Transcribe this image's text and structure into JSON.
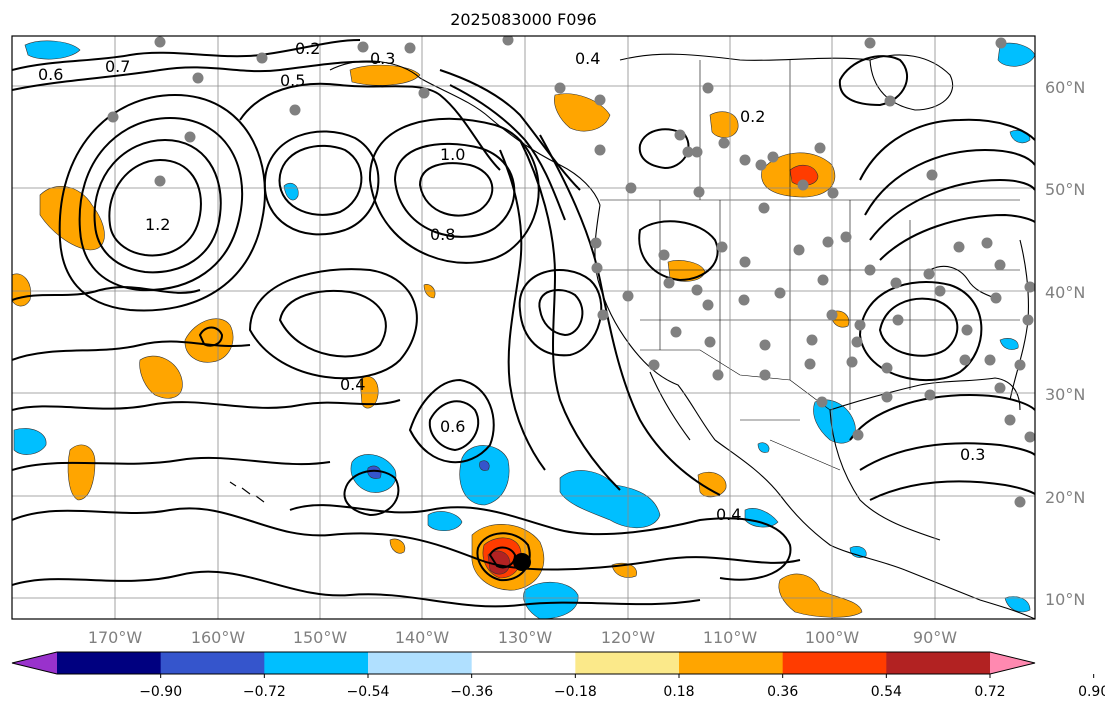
{
  "title": "2025083000 F096",
  "lat_labels": [
    "60°N",
    "50°N",
    "40°N",
    "30°N",
    "20°N",
    "10°N"
  ],
  "lon_labels": [
    "170°W",
    "160°W",
    "150°W",
    "140°W",
    "130°W",
    "120°W",
    "110°W",
    "100°W",
    "90°W"
  ],
  "colorbar": {
    "colors": [
      "#9932cc",
      "#000080",
      "#3555cc",
      "#00bfff",
      "#b0e0ff",
      "#ffffff",
      "#fbe98a",
      "#ffa500",
      "#ff3c00",
      "#b22222",
      "#ff89b0"
    ],
    "tick_labels": [
      "−0.90",
      "−0.72",
      "−0.54",
      "−0.36",
      "−0.18",
      "0.18",
      "0.36",
      "0.54",
      "0.72",
      "0.90"
    ]
  },
  "contour_labels": [
    {
      "text": "0.2",
      "id": "c1"
    },
    {
      "text": "0.7",
      "id": "c2"
    },
    {
      "text": "0.6",
      "id": "c3"
    },
    {
      "text": "0.5",
      "id": "c4"
    },
    {
      "text": "0.3",
      "id": "c5"
    },
    {
      "text": "0.4",
      "id": "c6"
    },
    {
      "text": "1.0",
      "id": "c7"
    },
    {
      "text": "1.2",
      "id": "c8"
    },
    {
      "text": "0.8",
      "id": "c9"
    },
    {
      "text": "0.6",
      "id": "c10"
    },
    {
      "text": "0.4",
      "id": "c11"
    },
    {
      "text": "0.3",
      "id": "c12"
    },
    {
      "text": "0.2",
      "id": "c13"
    },
    {
      "text": "0.4",
      "id": "c14"
    }
  ]
}
